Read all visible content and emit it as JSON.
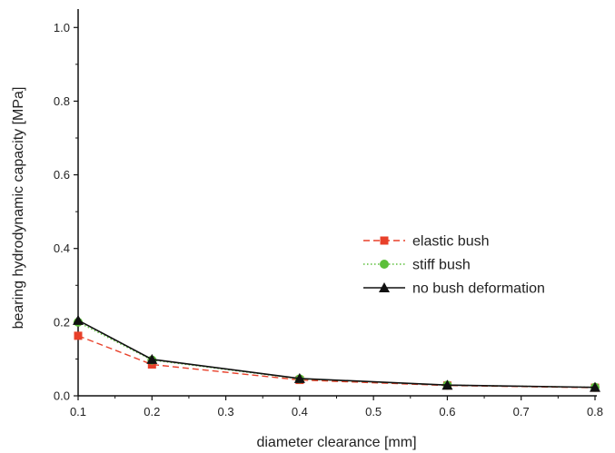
{
  "chart_data": {
    "type": "line",
    "xlabel": "diameter clearance [mm]",
    "ylabel": "bearing hydrodynamic capacity [MPa]",
    "xlim": [
      0.1,
      0.8
    ],
    "ylim": [
      0.0,
      1.05
    ],
    "xticks": [
      0.1,
      0.2,
      0.3,
      0.4,
      0.5,
      0.6,
      0.7,
      0.8
    ],
    "xtick_labels": [
      "0.1",
      "0.2",
      "0.3",
      "0.4",
      "0.5",
      "0.6",
      "0.7",
      "0.8"
    ],
    "yticks": [
      0.0,
      0.2,
      0.4,
      0.6,
      0.8,
      1.0
    ],
    "ytick_labels": [
      "0.0",
      "0.2",
      "0.4",
      "0.6",
      "0.8",
      "1.0"
    ],
    "grid": false,
    "legend_position": "center-right",
    "x": [
      0.1,
      0.2,
      0.4,
      0.6,
      0.8
    ],
    "series": [
      {
        "name": "elastic bush",
        "values": [
          0.163,
          0.085,
          0.043,
          0.028,
          0.022
        ],
        "color": "#e8402a",
        "marker": "square",
        "line": "dashed"
      },
      {
        "name": "stiff bush",
        "values": [
          0.2,
          0.097,
          0.046,
          0.029,
          0.023
        ],
        "color": "#5cbf3a",
        "marker": "circle",
        "line": "dotted"
      },
      {
        "name": "no bush deformation",
        "values": [
          0.205,
          0.099,
          0.047,
          0.029,
          0.023
        ],
        "color": "#111111",
        "marker": "triangle",
        "line": "solid"
      }
    ]
  }
}
